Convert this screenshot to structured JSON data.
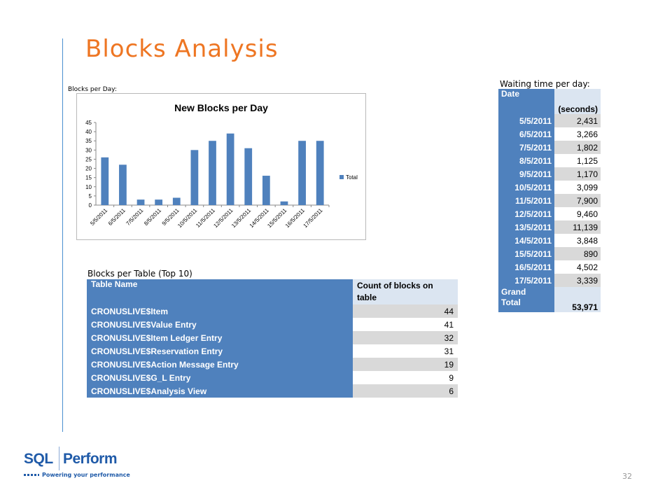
{
  "slide": {
    "title": "Blocks Analysis",
    "page_number": "32"
  },
  "chart_section": {
    "label": "Blocks per Day:"
  },
  "chart_data": {
    "type": "bar",
    "title": "New Blocks per Day",
    "categories": [
      "5/5/2011",
      "6/5/2011",
      "7/5/2011",
      "8/5/2011",
      "9/5/2011",
      "10/5/2011",
      "11/5/2011",
      "12/5/2011",
      "13/5/2011",
      "14/5/2011",
      "15/5/2011",
      "16/5/2011",
      "17/5/2011"
    ],
    "series": [
      {
        "name": "Total",
        "values": [
          26,
          22,
          3,
          3,
          4,
          30,
          35,
          39,
          31,
          16,
          2,
          35,
          35
        ],
        "color": "#4f81bd"
      }
    ],
    "ylim": [
      0,
      45
    ],
    "yticks": [
      0,
      5,
      10,
      15,
      20,
      25,
      30,
      35,
      40,
      45
    ],
    "grid": false,
    "legend": "right"
  },
  "waiting": {
    "label": "Waiting time per day:",
    "header_date": "Date",
    "header_seconds": "(seconds)",
    "rows": [
      {
        "date": "5/5/2011",
        "seconds": "2,431"
      },
      {
        "date": "6/5/2011",
        "seconds": "3,266"
      },
      {
        "date": "7/5/2011",
        "seconds": "1,802"
      },
      {
        "date": "8/5/2011",
        "seconds": "1,125"
      },
      {
        "date": "9/5/2011",
        "seconds": "1,170"
      },
      {
        "date": "10/5/2011",
        "seconds": "3,099"
      },
      {
        "date": "11/5/2011",
        "seconds": "7,900"
      },
      {
        "date": "12/5/2011",
        "seconds": "9,460"
      },
      {
        "date": "13/5/2011",
        "seconds": "11,139"
      },
      {
        "date": "14/5/2011",
        "seconds": "3,848"
      },
      {
        "date": "15/5/2011",
        "seconds": "890"
      },
      {
        "date": "16/5/2011",
        "seconds": "4,502"
      },
      {
        "date": "17/5/2011",
        "seconds": "3,339"
      }
    ],
    "grand_label_1": "Grand",
    "grand_label_2": "Total",
    "grand_total": "53,971"
  },
  "blocks_table": {
    "label": "Blocks per Table (Top 10)",
    "header_name": "Table Name",
    "header_count_1": "Count of blocks on",
    "header_count_2": "table",
    "rows": [
      {
        "name": "CRONUSLIVE$Item",
        "count": "44"
      },
      {
        "name": "CRONUSLIVE$Value Entry",
        "count": "41"
      },
      {
        "name": "CRONUSLIVE$Item Ledger Entry",
        "count": "32"
      },
      {
        "name": "CRONUSLIVE$Reservation Entry",
        "count": "31"
      },
      {
        "name": "CRONUSLIVE$Action Message Entry",
        "count": "19"
      },
      {
        "name": "CRONUSLIVE$G_L Entry",
        "count": "9"
      },
      {
        "name": "CRONUSLIVE$Analysis View",
        "count": "6"
      }
    ]
  },
  "logo": {
    "word1": "SQL",
    "word2": "Perform",
    "tagline": "Powering your performance"
  }
}
